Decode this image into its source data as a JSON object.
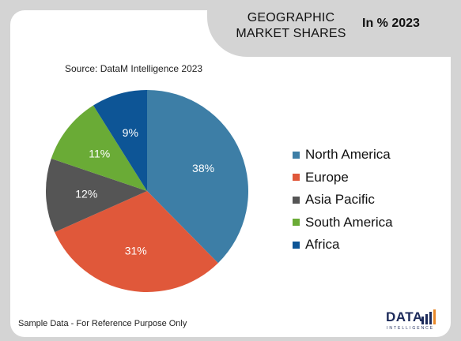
{
  "header": {
    "title": "GEOGRAPHIC MARKET SHARES",
    "subtitle": "In % 2023"
  },
  "source": "Source: DataM Intelligence 2023",
  "footnote": "Sample Data - For Reference Purpose Only",
  "logo": {
    "text": "DATA",
    "sub": "INTELLIGENCE"
  },
  "chart_data": {
    "type": "pie",
    "categories": [
      "North America",
      "Europe",
      "Asia Pacific",
      "South America",
      "Africa"
    ],
    "values": [
      38,
      31,
      12,
      11,
      9
    ],
    "data_labels": [
      "38%",
      "31%",
      "12%",
      "11%",
      "9%"
    ],
    "colors": [
      "#3d7ea6",
      "#e0583a",
      "#555555",
      "#6aab36",
      "#0d5596"
    ],
    "legend_position": "right"
  }
}
